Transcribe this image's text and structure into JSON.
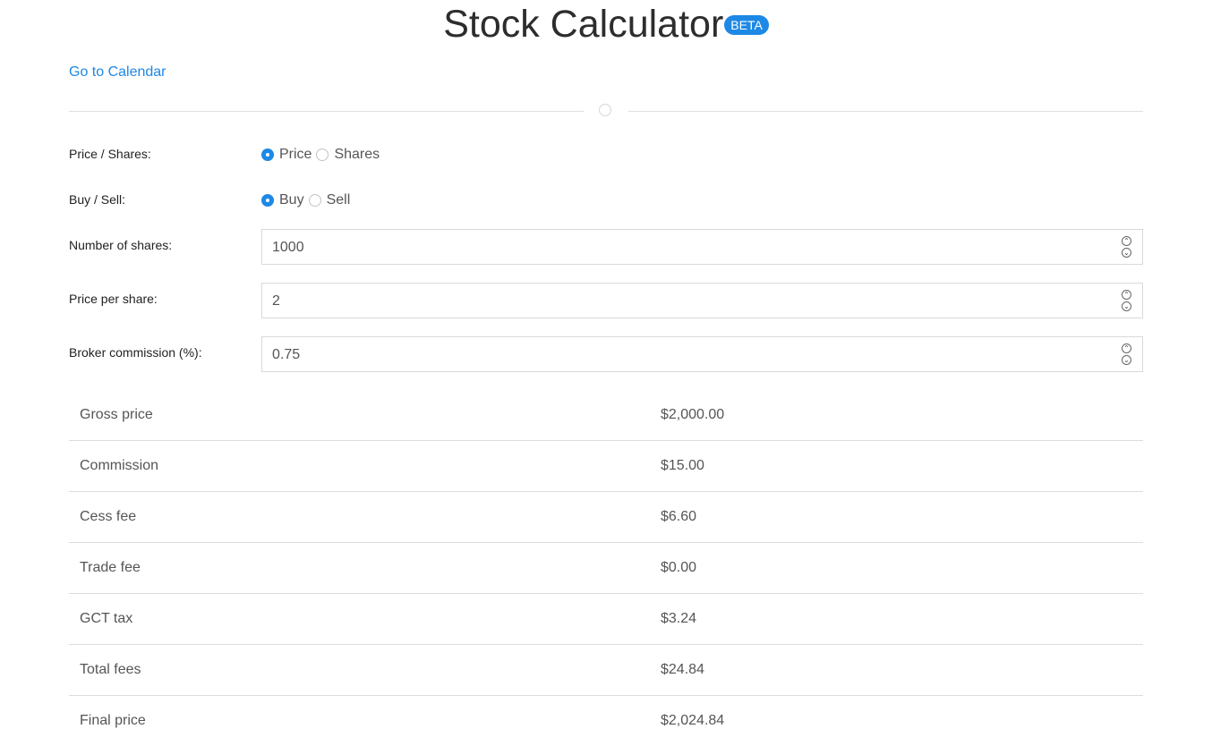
{
  "header": {
    "title": "Stock Calculator",
    "badge": "BETA",
    "calendar_link": "Go to Calendar"
  },
  "form": {
    "price_shares": {
      "label": "Price / Shares:",
      "options": [
        "Price",
        "Shares"
      ],
      "selected": "Price"
    },
    "buy_sell": {
      "label": "Buy / Sell:",
      "options": [
        "Buy",
        "Sell"
      ],
      "selected": "Buy"
    },
    "num_shares": {
      "label": "Number of shares:",
      "value": "1000"
    },
    "price_per_share": {
      "label": "Price per share:",
      "value": "2"
    },
    "commission": {
      "label": "Broker commission (%):",
      "value": "0.75"
    }
  },
  "results": [
    {
      "label": "Gross price",
      "value": "$2,000.00"
    },
    {
      "label": "Commission",
      "value": "$15.00"
    },
    {
      "label": "Cess fee",
      "value": "$6.60"
    },
    {
      "label": "Trade fee",
      "value": "$0.00"
    },
    {
      "label": "GCT tax",
      "value": "$3.24"
    },
    {
      "label": "Total fees",
      "value": "$24.84"
    },
    {
      "label": "Final price",
      "value": "$2,024.84"
    }
  ],
  "colors": {
    "accent": "#1e88e5",
    "text": "#333333",
    "muted": "#555555",
    "border": "#d9d9d9"
  },
  "icons": {
    "stepper_up": "chevron-up-icon",
    "stepper_down": "chevron-down-icon",
    "divider": "circle-icon"
  }
}
